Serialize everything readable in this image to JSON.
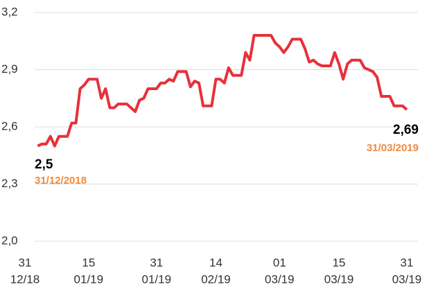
{
  "chart_data": {
    "type": "line",
    "x": [
      "2019-01-03",
      "2019-01-04",
      "2019-01-05",
      "2019-01-06",
      "2019-01-07",
      "2019-01-08",
      "2019-01-09",
      "2019-01-10",
      "2019-01-11",
      "2019-01-12",
      "2019-01-13",
      "2019-01-14",
      "2019-01-15",
      "2019-01-16",
      "2019-01-17",
      "2019-01-18",
      "2019-01-19",
      "2019-01-20",
      "2019-01-21",
      "2019-01-22",
      "2019-01-23",
      "2019-01-24",
      "2019-01-25",
      "2019-01-26",
      "2019-01-27",
      "2019-01-28",
      "2019-01-29",
      "2019-01-30",
      "2019-01-31",
      "2019-02-01",
      "2019-02-02",
      "2019-02-03",
      "2019-02-04",
      "2019-02-05",
      "2019-02-06",
      "2019-02-07",
      "2019-02-08",
      "2019-02-09",
      "2019-02-10",
      "2019-02-11",
      "2019-02-12",
      "2019-02-13",
      "2019-02-14",
      "2019-02-15",
      "2019-02-16",
      "2019-02-17",
      "2019-02-18",
      "2019-02-19",
      "2019-02-20",
      "2019-02-21",
      "2019-02-22",
      "2019-02-23",
      "2019-02-24",
      "2019-02-25",
      "2019-02-26",
      "2019-02-27",
      "2019-02-28",
      "2019-03-01",
      "2019-03-02",
      "2019-03-03",
      "2019-03-04",
      "2019-03-05",
      "2019-03-06",
      "2019-03-07",
      "2019-03-08",
      "2019-03-09",
      "2019-03-10",
      "2019-03-11",
      "2019-03-12",
      "2019-03-13",
      "2019-03-14",
      "2019-03-15",
      "2019-03-16",
      "2019-03-17",
      "2019-03-18",
      "2019-03-19",
      "2019-03-20",
      "2019-03-21",
      "2019-03-22",
      "2019-03-23",
      "2019-03-24",
      "2019-03-25",
      "2019-03-26",
      "2019-03-27",
      "2019-03-28",
      "2019-03-29",
      "2019-03-30",
      "2019-03-31"
    ],
    "series": [
      {
        "color": "#e8303a",
        "values": [
          2.5,
          2.51,
          2.51,
          2.55,
          2.5,
          2.55,
          2.55,
          2.55,
          2.62,
          2.62,
          2.8,
          2.82,
          2.85,
          2.85,
          2.85,
          2.75,
          2.8,
          2.7,
          2.7,
          2.72,
          2.72,
          2.72,
          2.7,
          2.68,
          2.74,
          2.75,
          2.8,
          2.8,
          2.8,
          2.83,
          2.83,
          2.85,
          2.84,
          2.89,
          2.89,
          2.89,
          2.81,
          2.84,
          2.83,
          2.71,
          2.71,
          2.71,
          2.85,
          2.85,
          2.83,
          2.91,
          2.87,
          2.87,
          2.87,
          2.99,
          2.95,
          3.08,
          3.08,
          3.08,
          3.08,
          3.08,
          3.04,
          3.02,
          2.99,
          3.02,
          3.06,
          3.06,
          3.06,
          3.01,
          2.94,
          2.95,
          2.93,
          2.92,
          2.92,
          2.92,
          2.99,
          2.93,
          2.85,
          2.93,
          2.95,
          2.95,
          2.95,
          2.91,
          2.9,
          2.89,
          2.86,
          2.76,
          2.76,
          2.76,
          2.71,
          2.71,
          2.71,
          2.69
        ]
      }
    ],
    "xlim": [
      "2018-12-31",
      "2019-03-31"
    ],
    "xticks": [
      {
        "value": "2018-12-31",
        "label": [
          "31",
          "12/18"
        ]
      },
      {
        "value": "2019-01-15",
        "label": [
          "15",
          "01/19"
        ]
      },
      {
        "value": "2019-01-31",
        "label": [
          "31",
          "01/19"
        ]
      },
      {
        "value": "2019-02-14",
        "label": [
          "14",
          "02/19"
        ]
      },
      {
        "value": "2019-03-01",
        "label": [
          "01",
          "03/19"
        ]
      },
      {
        "value": "2019-03-15",
        "label": [
          "15",
          "03/19"
        ]
      },
      {
        "value": "2019-03-31",
        "label": [
          "31",
          "03/19"
        ]
      }
    ],
    "ylim": [
      2.0,
      3.2
    ],
    "yticks": [
      {
        "value": 2.0,
        "label": "2,0"
      },
      {
        "value": 2.3,
        "label": "2,3"
      },
      {
        "value": 2.6,
        "label": "2,6"
      },
      {
        "value": 2.9,
        "label": "2,9"
      },
      {
        "value": 3.2,
        "label": "3,2"
      }
    ],
    "grid": true,
    "annotations": [
      {
        "value": "2,5",
        "date": "31/12/2018"
      },
      {
        "value": "2,69",
        "date": "31/03/2019"
      }
    ]
  }
}
